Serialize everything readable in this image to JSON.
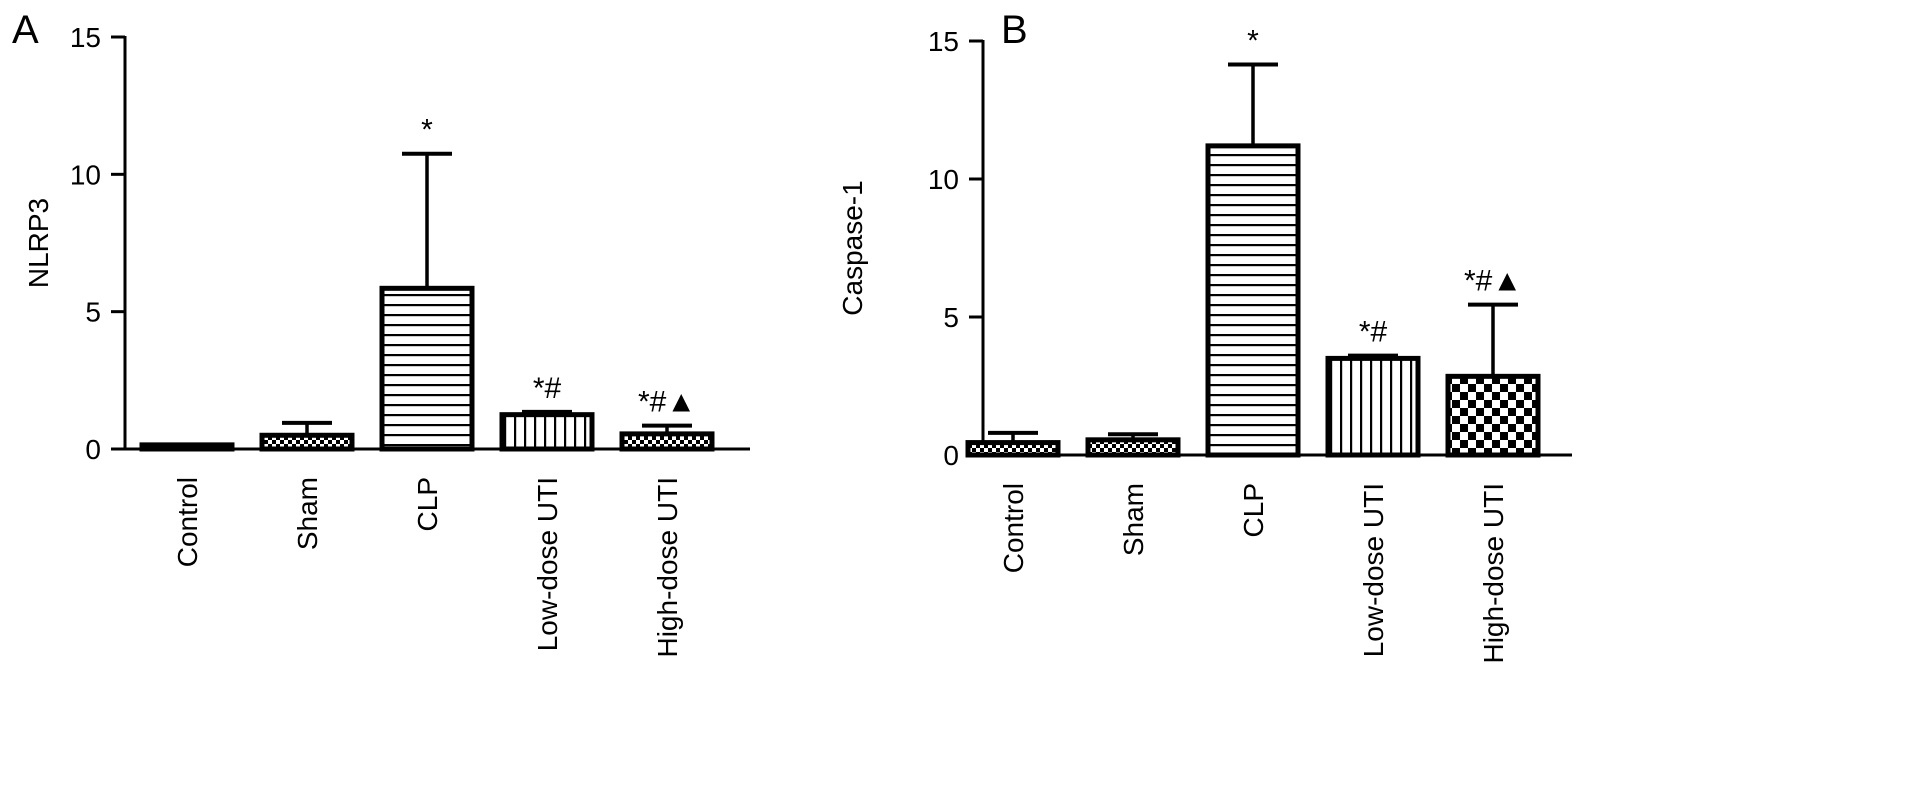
{
  "chart_data": [
    {
      "panel_label": "A",
      "type": "bar",
      "ylabel": "NLRP3",
      "ylim": [
        0,
        15
      ],
      "yticks": [
        "0",
        "5",
        "10",
        "15"
      ],
      "categories": [
        "Control",
        "Sham",
        "CLP",
        "Low-dose UTI",
        "High-dose UTI"
      ],
      "values": [
        0.15,
        0.5,
        5.85,
        1.25,
        0.55
      ],
      "errors": [
        0.0,
        0.45,
        4.9,
        0.1,
        0.3
      ],
      "significance": [
        "",
        "",
        "*",
        "*#",
        "*#▲"
      ],
      "patterns": [
        "solid-white",
        "checker-fine",
        "horizontal",
        "vertical",
        "checker-fine"
      ]
    },
    {
      "panel_label": "B",
      "type": "bar",
      "ylabel": "Caspase-1",
      "ylim": [
        0,
        15
      ],
      "yticks": [
        "0",
        "5",
        "10",
        "15"
      ],
      "categories": [
        "Control",
        "Sham",
        "CLP",
        "Low-dose UTI",
        "High-dose UTI"
      ],
      "values": [
        0.45,
        0.55,
        11.2,
        3.5,
        2.85
      ],
      "errors": [
        0.35,
        0.2,
        2.95,
        0.1,
        2.6
      ],
      "significance": [
        "",
        "",
        "*",
        "*#",
        "*#▲"
      ],
      "patterns": [
        "checker-fine",
        "checker-fine",
        "horizontal",
        "vertical",
        "checker-coarse"
      ]
    }
  ]
}
